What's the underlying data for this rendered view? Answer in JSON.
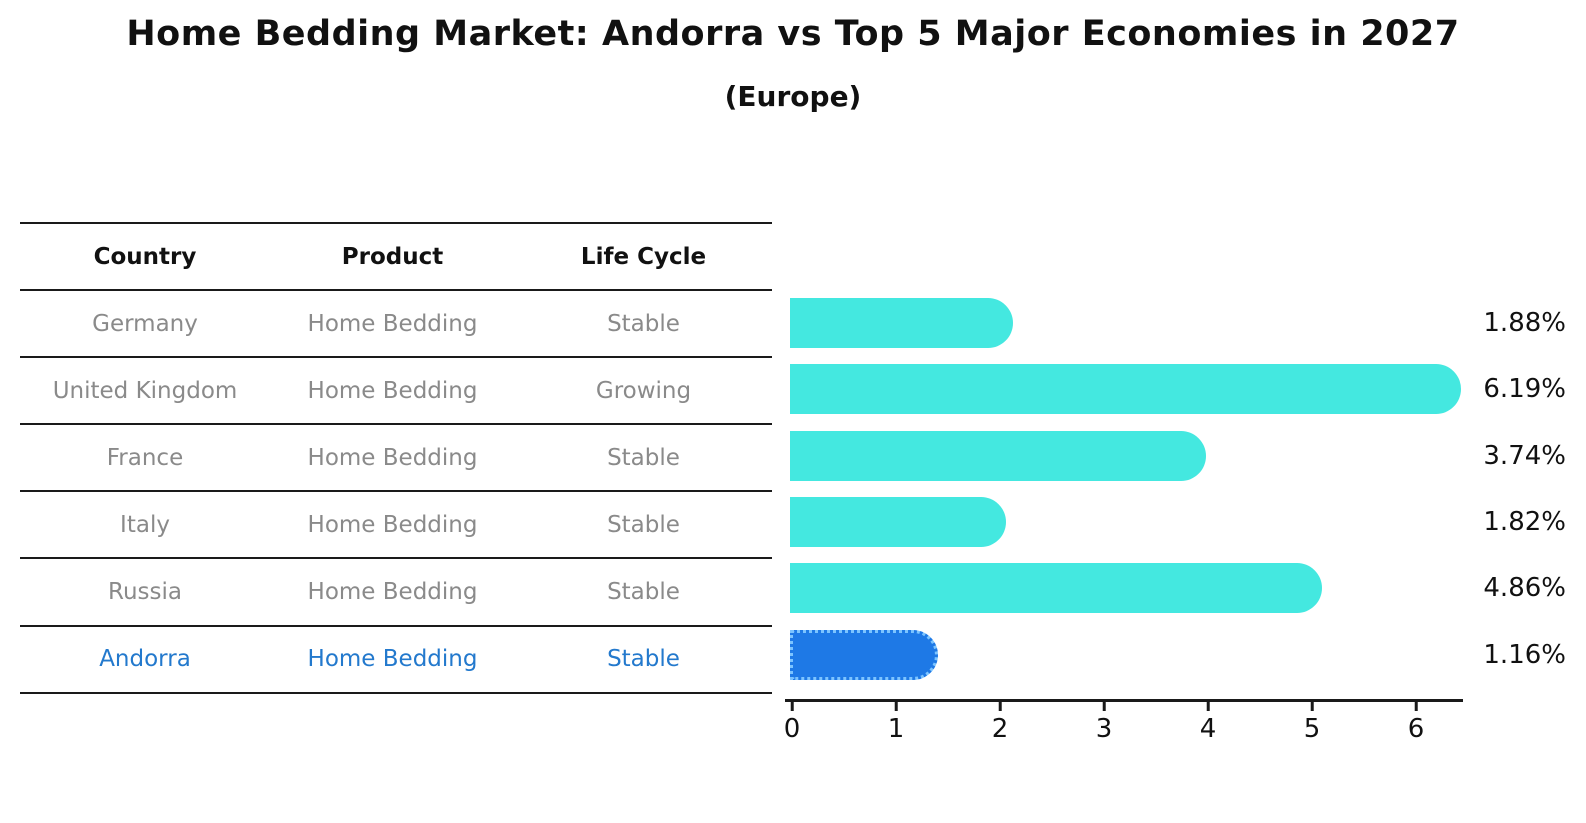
{
  "title": "Home Bedding Market: Andorra vs Top 5 Major Economies in 2027",
  "subtitle": "(Europe)",
  "table": {
    "columns": [
      "Country",
      "Product",
      "Life Cycle"
    ],
    "rows": [
      {
        "country": "Germany",
        "product": "Home Bedding",
        "life_cycle": "Stable",
        "highlighted": false
      },
      {
        "country": "United Kingdom",
        "product": "Home Bedding",
        "life_cycle": "Growing",
        "highlighted": false
      },
      {
        "country": "France",
        "product": "Home Bedding",
        "life_cycle": "Stable",
        "highlighted": false
      },
      {
        "country": "Italy",
        "product": "Home Bedding",
        "life_cycle": "Stable",
        "highlighted": false
      },
      {
        "country": "Russia",
        "product": "Home Bedding",
        "life_cycle": "Stable",
        "highlighted": false
      },
      {
        "country": "Andorra",
        "product": "Home Bedding",
        "life_cycle": "Stable",
        "highlighted": true
      }
    ]
  },
  "chart_data": {
    "type": "bar",
    "orientation": "horizontal",
    "title": "Home Bedding Market: Andorra vs Top 5 Major Economies in 2027",
    "subtitle": "(Europe)",
    "categories": [
      "Germany",
      "United Kingdom",
      "France",
      "Italy",
      "Russia",
      "Andorra"
    ],
    "values": [
      1.88,
      6.19,
      3.74,
      1.82,
      4.86,
      1.16
    ],
    "value_labels": [
      "1.88%",
      "6.19%",
      "3.74%",
      "1.82%",
      "4.86%",
      "1.16%"
    ],
    "xlabel": "",
    "ylabel": "",
    "xlim": [
      0,
      6.5
    ],
    "x_ticks": [
      0,
      1,
      2,
      3,
      4,
      5,
      6
    ],
    "grid": false,
    "legend": false,
    "highlight_index": 5
  },
  "colors": {
    "bar": "#44e8e0",
    "highlight_bar": "#1e79e6",
    "highlight_bar_border": "#7cc4ff",
    "highlight_text": "#2379cd",
    "table_text": "#8a8a8a",
    "header_text": "#111111",
    "line": "#1a1a1a"
  }
}
